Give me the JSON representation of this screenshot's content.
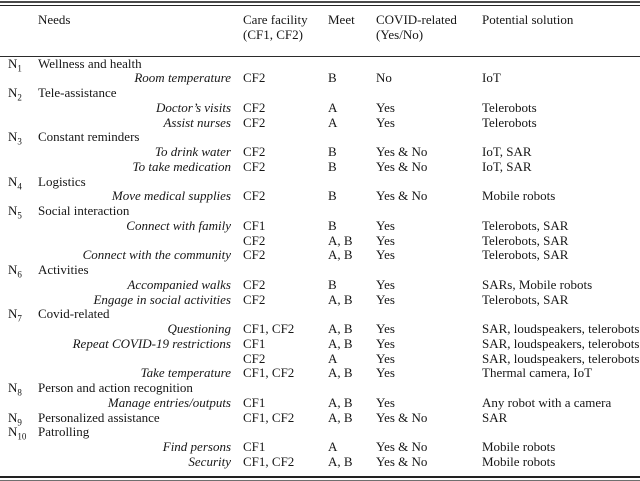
{
  "table": {
    "headers": {
      "needs": "Needs",
      "care_facility_line1": "Care facility",
      "care_facility_line2": "(CF1, CF2)",
      "meet": "Meet",
      "covid_line1": "COVID-related",
      "covid_line2": "(Yes/No)",
      "solution": "Potential solution"
    },
    "rows": [
      {
        "n": "1",
        "need": "Wellness and health",
        "style": "cat",
        "cf": "",
        "meet": "",
        "covid": "",
        "solution": ""
      },
      {
        "n": "",
        "need": "Room temperature",
        "style": "sub",
        "cf": "CF2",
        "meet": "B",
        "covid": "No",
        "solution": "IoT"
      },
      {
        "n": "2",
        "need": "Tele-assistance",
        "style": "cat",
        "cf": "",
        "meet": "",
        "covid": "",
        "solution": ""
      },
      {
        "n": "",
        "need": "Doctor’s visits",
        "style": "sub",
        "cf": "CF2",
        "meet": "A",
        "covid": "Yes",
        "solution": "Telerobots"
      },
      {
        "n": "",
        "need": "Assist nurses",
        "style": "sub",
        "cf": "CF2",
        "meet": "A",
        "covid": "Yes",
        "solution": "Telerobots"
      },
      {
        "n": "3",
        "need": "Constant reminders",
        "style": "cat",
        "cf": "",
        "meet": "",
        "covid": "",
        "solution": ""
      },
      {
        "n": "",
        "need": "To drink water",
        "style": "sub",
        "cf": "CF2",
        "meet": "B",
        "covid": "Yes & No",
        "solution": "IoT, SAR"
      },
      {
        "n": "",
        "need": "To take medication",
        "style": "sub",
        "cf": "CF2",
        "meet": "B",
        "covid": "Yes & No",
        "solution": "IoT, SAR"
      },
      {
        "n": "4",
        "need": "Logistics",
        "style": "cat",
        "cf": "",
        "meet": "",
        "covid": "",
        "solution": ""
      },
      {
        "n": "",
        "need": "Move medical supplies",
        "style": "sub",
        "cf": "CF2",
        "meet": "B",
        "covid": "Yes & No",
        "solution": "Mobile robots"
      },
      {
        "n": "5",
        "need": "Social interaction",
        "style": "cat",
        "cf": "",
        "meet": "",
        "covid": "",
        "solution": ""
      },
      {
        "n": "",
        "need": "Connect with family",
        "style": "sub",
        "cf": "CF1",
        "meet": "B",
        "covid": "Yes",
        "solution": "Telerobots, SAR"
      },
      {
        "n": "",
        "need": "",
        "style": "sub",
        "cf": "CF2",
        "meet": "A, B",
        "covid": "Yes",
        "solution": "Telerobots, SAR"
      },
      {
        "n": "",
        "need": "Connect with the community",
        "style": "sub",
        "cf": "CF2",
        "meet": "A, B",
        "covid": "Yes",
        "solution": "Telerobots, SAR"
      },
      {
        "n": "6",
        "need": "Activities",
        "style": "cat",
        "cf": "",
        "meet": "",
        "covid": "",
        "solution": ""
      },
      {
        "n": "",
        "need": "Accompanied walks",
        "style": "sub",
        "cf": "CF2",
        "meet": "B",
        "covid": "Yes",
        "solution": "SARs, Mobile robots"
      },
      {
        "n": "",
        "need": "Engage in social activities",
        "style": "sub",
        "cf": "CF2",
        "meet": "A, B",
        "covid": "Yes",
        "solution": "Telerobots, SAR"
      },
      {
        "n": "7",
        "need": "Covid-related",
        "style": "cat",
        "cf": "",
        "meet": "",
        "covid": "",
        "solution": ""
      },
      {
        "n": "",
        "need": "Questioning",
        "style": "sub",
        "cf": "CF1, CF2",
        "meet": "A, B",
        "covid": "Yes",
        "solution": "SAR, loudspeakers, telerobots"
      },
      {
        "n": "",
        "need": "Repeat COVID-19 restrictions",
        "style": "sub",
        "cf": "CF1",
        "meet": "A, B",
        "covid": "Yes",
        "solution": "SAR, loudspeakers, telerobots"
      },
      {
        "n": "",
        "need": "",
        "style": "sub",
        "cf": "CF2",
        "meet": "A",
        "covid": "Yes",
        "solution": "SAR, loudspeakers, telerobots"
      },
      {
        "n": "",
        "need": "Take temperature",
        "style": "sub",
        "cf": "CF1, CF2",
        "meet": "A, B",
        "covid": "Yes",
        "solution": "Thermal camera, IoT"
      },
      {
        "n": "8",
        "need": "Person and action recognition",
        "style": "cat",
        "cf": "",
        "meet": "",
        "covid": "",
        "solution": ""
      },
      {
        "n": "",
        "need": "Manage entries/outputs",
        "style": "sub",
        "cf": "CF1",
        "meet": "A, B",
        "covid": "Yes",
        "solution": "Any robot with a camera"
      },
      {
        "n": "9",
        "need": "Personalized assistance",
        "style": "cat",
        "cf": "CF1, CF2",
        "meet": "A, B",
        "covid": "Yes & No",
        "solution": "SAR"
      },
      {
        "n": "10",
        "need": "Patrolling",
        "style": "cat",
        "cf": "",
        "meet": "",
        "covid": "",
        "solution": ""
      },
      {
        "n": "",
        "need": "Find persons",
        "style": "sub",
        "cf": "CF1",
        "meet": "A",
        "covid": "Yes & No",
        "solution": "Mobile robots"
      },
      {
        "n": "",
        "need": "Security",
        "style": "sub",
        "cf": "CF1, CF2",
        "meet": "A, B",
        "covid": "Yes & No",
        "solution": "Mobile robots"
      }
    ]
  },
  "colors": {
    "background": "#ffffff",
    "text": "#161616",
    "rule": "#222222"
  }
}
